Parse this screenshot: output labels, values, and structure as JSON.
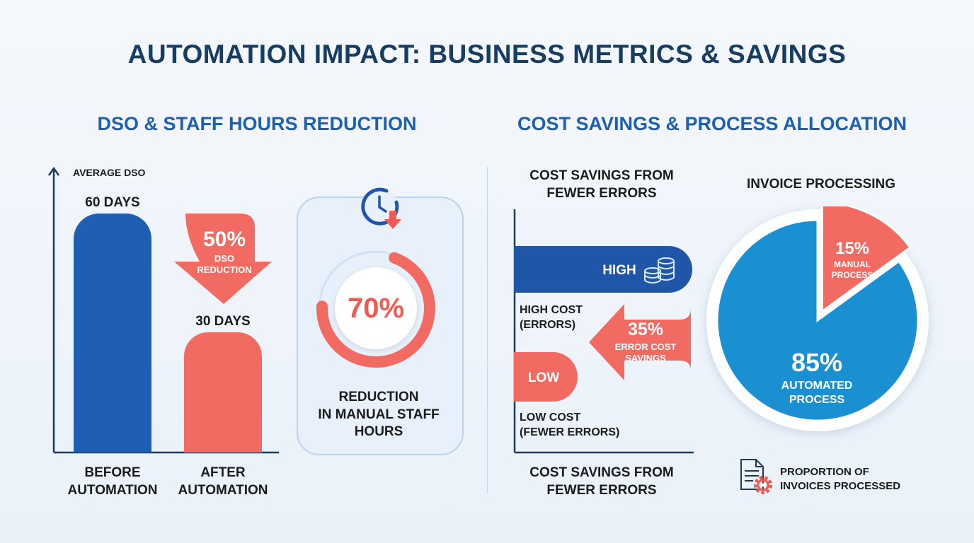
{
  "title": "AUTOMATION IMPACT: BUSINESS METRICS & SAVINGS",
  "left_section": {
    "title": "DSO & STAFF HOURS REDUCTION",
    "ylabel": "AVERAGE DSO",
    "bars": [
      {
        "category_line1": "BEFORE",
        "category_line2": "AUTOMATION",
        "value": 60,
        "label": "60 DAYS",
        "color": "#1f5fb3"
      },
      {
        "category_line1": "AFTER",
        "category_line2": "AUTOMATION",
        "value": 30,
        "label": "30 DAYS",
        "color": "#f26b63"
      }
    ],
    "reduction_badge": {
      "value": "50%",
      "line1": "DSO",
      "line2": "REDUCTION"
    },
    "staff_hours": {
      "percent": 70,
      "label": "70%",
      "line1": "REDUCTION",
      "line2": "IN MANUAL STAFF",
      "line3": "HOURS",
      "icon": "clock-down-icon"
    }
  },
  "right_section": {
    "title": "COST SAVINGS & PROCESS ALLOCATION",
    "cost": {
      "top_title_line1": "COST SAVINGS FROM",
      "top_title_line2": "FEWER ERRORS",
      "high_label": "HIGH",
      "high_desc_line1": "HIGH COST",
      "high_desc_line2": "(ERRORS)",
      "low_label": "LOW",
      "low_desc_line1": "LOW COST",
      "low_desc_line2": "(FEWER ERRORS)",
      "savings": {
        "value": "35%",
        "line1": "ERROR COST",
        "line2": "SAVINGS"
      },
      "bottom_title_line1": "COST SAVINGS FROM",
      "bottom_title_line2": "FEWER ERRORS",
      "icon": "coins-icon"
    },
    "pie": {
      "title": "INVOICE PROCESSING",
      "footer_line1": "PROPORTION OF",
      "footer_line2": "INVOICES PROCESSED",
      "footer_icon": "document-gear-icon"
    }
  },
  "chart_data": [
    {
      "type": "bar",
      "title": "DSO & STAFF HOURS REDUCTION",
      "ylabel": "AVERAGE DSO",
      "categories": [
        "BEFORE AUTOMATION",
        "AFTER AUTOMATION"
      ],
      "values": [
        60,
        30
      ],
      "unit": "DAYS",
      "annotations": [
        "50% DSO REDUCTION"
      ]
    },
    {
      "type": "pie",
      "title": "REDUCTION IN MANUAL STAFF HOURS",
      "values": [
        70
      ],
      "unit": "%"
    },
    {
      "type": "bar",
      "title": "COST SAVINGS FROM FEWER ERRORS",
      "categories": [
        "HIGH",
        "LOW"
      ],
      "category_descriptions": [
        "HIGH COST (ERRORS)",
        "LOW COST (FEWER ERRORS)"
      ],
      "annotations": [
        "35% ERROR COST SAVINGS"
      ]
    },
    {
      "type": "pie",
      "title": "INVOICE PROCESSING",
      "slices": [
        {
          "label": "MANUAL PROCESS",
          "value": 15,
          "color": "#f26b63"
        },
        {
          "label": "AUTOMATED PROCESS",
          "value": 85,
          "color": "#1a8fd1"
        }
      ]
    }
  ]
}
